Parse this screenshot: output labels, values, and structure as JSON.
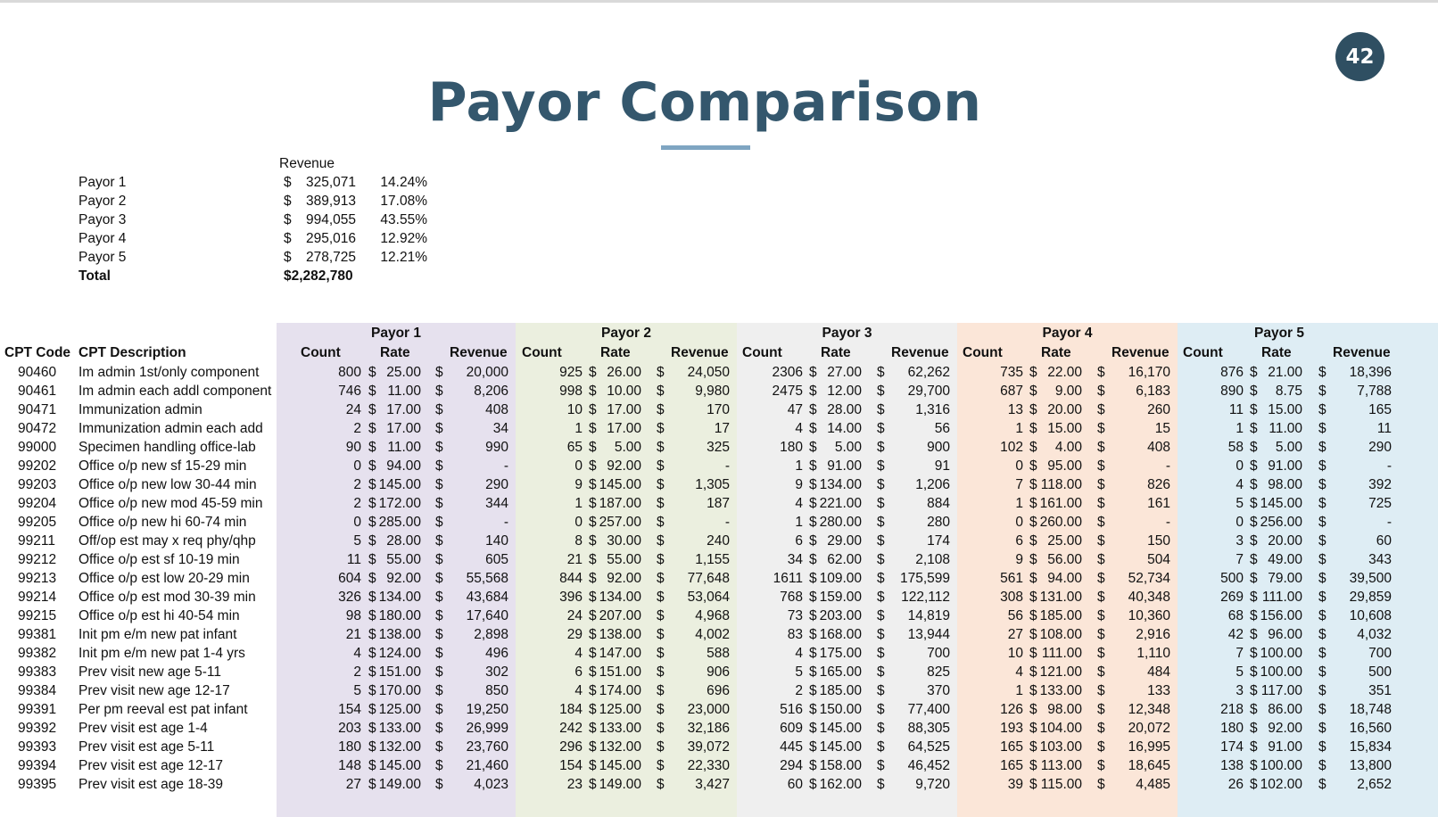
{
  "slide": {
    "number": "42",
    "title": "Payor Comparison"
  },
  "summary": {
    "header": "Revenue",
    "currency_symbol": "$",
    "rows": [
      {
        "name": "Payor 1",
        "amount": "325,071",
        "percent": "14.24%"
      },
      {
        "name": "Payor 2",
        "amount": "389,913",
        "percent": "17.08%"
      },
      {
        "name": "Payor 3",
        "amount": "994,055",
        "percent": "43.55%"
      },
      {
        "name": "Payor 4",
        "amount": "295,016",
        "percent": "12.92%"
      },
      {
        "name": "Payor 5",
        "amount": "278,725",
        "percent": "12.21%"
      }
    ],
    "total_label": "Total",
    "total_amount": "$2,282,780"
  },
  "table": {
    "col_code": "CPT Code",
    "col_desc": "CPT Description",
    "payors": [
      "Payor 1",
      "Payor 2",
      "Payor 3",
      "Payor 4",
      "Payor 5"
    ],
    "sub_headers": [
      "Count",
      "Rate",
      "Revenue"
    ],
    "currency_symbol": "$",
    "band_colors": [
      "#e6e1ee",
      "#ebefdf",
      "#efefef",
      "#fbe6d8",
      "#deedf4"
    ],
    "rows": [
      {
        "code": "90460",
        "desc": "Im admin 1st/only component",
        "vals": [
          [
            "800",
            "25.00",
            "20,000"
          ],
          [
            "925",
            "26.00",
            "24,050"
          ],
          [
            "2306",
            "27.00",
            "62,262"
          ],
          [
            "735",
            "22.00",
            "16,170"
          ],
          [
            "876",
            "21.00",
            "18,396"
          ]
        ]
      },
      {
        "code": "90461",
        "desc": "Im admin each addl component",
        "vals": [
          [
            "746",
            "11.00",
            "8,206"
          ],
          [
            "998",
            "10.00",
            "9,980"
          ],
          [
            "2475",
            "12.00",
            "29,700"
          ],
          [
            "687",
            "9.00",
            "6,183"
          ],
          [
            "890",
            "8.75",
            "7,788"
          ]
        ]
      },
      {
        "code": "90471",
        "desc": "Immunization admin",
        "vals": [
          [
            "24",
            "17.00",
            "408"
          ],
          [
            "10",
            "17.00",
            "170"
          ],
          [
            "47",
            "28.00",
            "1,316"
          ],
          [
            "13",
            "20.00",
            "260"
          ],
          [
            "11",
            "15.00",
            "165"
          ]
        ]
      },
      {
        "code": "90472",
        "desc": "Immunization admin each add",
        "vals": [
          [
            "2",
            "17.00",
            "34"
          ],
          [
            "1",
            "17.00",
            "17"
          ],
          [
            "4",
            "14.00",
            "56"
          ],
          [
            "1",
            "15.00",
            "15"
          ],
          [
            "1",
            "11.00",
            "11"
          ]
        ]
      },
      {
        "code": "99000",
        "desc": "Specimen handling office-lab",
        "vals": [
          [
            "90",
            "11.00",
            "990"
          ],
          [
            "65",
            "5.00",
            "325"
          ],
          [
            "180",
            "5.00",
            "900"
          ],
          [
            "102",
            "4.00",
            "408"
          ],
          [
            "58",
            "5.00",
            "290"
          ]
        ]
      },
      {
        "code": "99202",
        "desc": "Office o/p new sf 15-29 min",
        "vals": [
          [
            "0",
            "94.00",
            "-"
          ],
          [
            "0",
            "92.00",
            "-"
          ],
          [
            "1",
            "91.00",
            "91"
          ],
          [
            "0",
            "95.00",
            "-"
          ],
          [
            "0",
            "91.00",
            "-"
          ]
        ]
      },
      {
        "code": "99203",
        "desc": "Office o/p new low 30-44 min",
        "vals": [
          [
            "2",
            "145.00",
            "290"
          ],
          [
            "9",
            "145.00",
            "1,305"
          ],
          [
            "9",
            "134.00",
            "1,206"
          ],
          [
            "7",
            "118.00",
            "826"
          ],
          [
            "4",
            "98.00",
            "392"
          ]
        ]
      },
      {
        "code": "99204",
        "desc": "Office o/p new mod 45-59 min",
        "vals": [
          [
            "2",
            "172.00",
            "344"
          ],
          [
            "1",
            "187.00",
            "187"
          ],
          [
            "4",
            "221.00",
            "884"
          ],
          [
            "1",
            "161.00",
            "161"
          ],
          [
            "5",
            "145.00",
            "725"
          ]
        ]
      },
      {
        "code": "99205",
        "desc": "Office o/p new hi 60-74 min",
        "vals": [
          [
            "0",
            "285.00",
            "-"
          ],
          [
            "0",
            "257.00",
            "-"
          ],
          [
            "1",
            "280.00",
            "280"
          ],
          [
            "0",
            "260.00",
            "-"
          ],
          [
            "0",
            "256.00",
            "-"
          ]
        ]
      },
      {
        "code": "99211",
        "desc": "Off/op est may x req phy/qhp",
        "vals": [
          [
            "5",
            "28.00",
            "140"
          ],
          [
            "8",
            "30.00",
            "240"
          ],
          [
            "6",
            "29.00",
            "174"
          ],
          [
            "6",
            "25.00",
            "150"
          ],
          [
            "3",
            "20.00",
            "60"
          ]
        ]
      },
      {
        "code": "99212",
        "desc": "Office o/p est sf 10-19 min",
        "vals": [
          [
            "11",
            "55.00",
            "605"
          ],
          [
            "21",
            "55.00",
            "1,155"
          ],
          [
            "34",
            "62.00",
            "2,108"
          ],
          [
            "9",
            "56.00",
            "504"
          ],
          [
            "7",
            "49.00",
            "343"
          ]
        ]
      },
      {
        "code": "99213",
        "desc": "Office o/p est low 20-29 min",
        "vals": [
          [
            "604",
            "92.00",
            "55,568"
          ],
          [
            "844",
            "92.00",
            "77,648"
          ],
          [
            "1611",
            "109.00",
            "175,599"
          ],
          [
            "561",
            "94.00",
            "52,734"
          ],
          [
            "500",
            "79.00",
            "39,500"
          ]
        ]
      },
      {
        "code": "99214",
        "desc": "Office o/p est mod 30-39 min",
        "vals": [
          [
            "326",
            "134.00",
            "43,684"
          ],
          [
            "396",
            "134.00",
            "53,064"
          ],
          [
            "768",
            "159.00",
            "122,112"
          ],
          [
            "308",
            "131.00",
            "40,348"
          ],
          [
            "269",
            "111.00",
            "29,859"
          ]
        ]
      },
      {
        "code": "99215",
        "desc": "Office o/p est hi 40-54 min",
        "vals": [
          [
            "98",
            "180.00",
            "17,640"
          ],
          [
            "24",
            "207.00",
            "4,968"
          ],
          [
            "73",
            "203.00",
            "14,819"
          ],
          [
            "56",
            "185.00",
            "10,360"
          ],
          [
            "68",
            "156.00",
            "10,608"
          ]
        ]
      },
      {
        "code": "99381",
        "desc": "Init pm e/m new pat infant",
        "vals": [
          [
            "21",
            "138.00",
            "2,898"
          ],
          [
            "29",
            "138.00",
            "4,002"
          ],
          [
            "83",
            "168.00",
            "13,944"
          ],
          [
            "27",
            "108.00",
            "2,916"
          ],
          [
            "42",
            "96.00",
            "4,032"
          ]
        ]
      },
      {
        "code": "99382",
        "desc": "Init pm e/m new pat 1-4 yrs",
        "vals": [
          [
            "4",
            "124.00",
            "496"
          ],
          [
            "4",
            "147.00",
            "588"
          ],
          [
            "4",
            "175.00",
            "700"
          ],
          [
            "10",
            "111.00",
            "1,110"
          ],
          [
            "7",
            "100.00",
            "700"
          ]
        ]
      },
      {
        "code": "99383",
        "desc": "Prev visit new age 5-11",
        "vals": [
          [
            "2",
            "151.00",
            "302"
          ],
          [
            "6",
            "151.00",
            "906"
          ],
          [
            "5",
            "165.00",
            "825"
          ],
          [
            "4",
            "121.00",
            "484"
          ],
          [
            "5",
            "100.00",
            "500"
          ]
        ]
      },
      {
        "code": "99384",
        "desc": "Prev visit new age 12-17",
        "vals": [
          [
            "5",
            "170.00",
            "850"
          ],
          [
            "4",
            "174.00",
            "696"
          ],
          [
            "2",
            "185.00",
            "370"
          ],
          [
            "1",
            "133.00",
            "133"
          ],
          [
            "3",
            "117.00",
            "351"
          ]
        ]
      },
      {
        "code": "99391",
        "desc": "Per pm reeval est pat infant",
        "vals": [
          [
            "154",
            "125.00",
            "19,250"
          ],
          [
            "184",
            "125.00",
            "23,000"
          ],
          [
            "516",
            "150.00",
            "77,400"
          ],
          [
            "126",
            "98.00",
            "12,348"
          ],
          [
            "218",
            "86.00",
            "18,748"
          ]
        ]
      },
      {
        "code": "99392",
        "desc": "Prev visit est age 1-4",
        "vals": [
          [
            "203",
            "133.00",
            "26,999"
          ],
          [
            "242",
            "133.00",
            "32,186"
          ],
          [
            "609",
            "145.00",
            "88,305"
          ],
          [
            "193",
            "104.00",
            "20,072"
          ],
          [
            "180",
            "92.00",
            "16,560"
          ]
        ]
      },
      {
        "code": "99393",
        "desc": "Prev visit est age 5-11",
        "vals": [
          [
            "180",
            "132.00",
            "23,760"
          ],
          [
            "296",
            "132.00",
            "39,072"
          ],
          [
            "445",
            "145.00",
            "64,525"
          ],
          [
            "165",
            "103.00",
            "16,995"
          ],
          [
            "174",
            "91.00",
            "15,834"
          ]
        ]
      },
      {
        "code": "99394",
        "desc": "Prev visit est age 12-17",
        "vals": [
          [
            "148",
            "145.00",
            "21,460"
          ],
          [
            "154",
            "145.00",
            "22,330"
          ],
          [
            "294",
            "158.00",
            "46,452"
          ],
          [
            "165",
            "113.00",
            "18,645"
          ],
          [
            "138",
            "100.00",
            "13,800"
          ]
        ]
      },
      {
        "code": "99395",
        "desc": "Prev visit est age 18-39",
        "vals": [
          [
            "27",
            "149.00",
            "4,023"
          ],
          [
            "23",
            "149.00",
            "3,427"
          ],
          [
            "60",
            "162.00",
            "9,720"
          ],
          [
            "39",
            "115.00",
            "4,485"
          ],
          [
            "26",
            "102.00",
            "2,652"
          ]
        ]
      }
    ]
  }
}
